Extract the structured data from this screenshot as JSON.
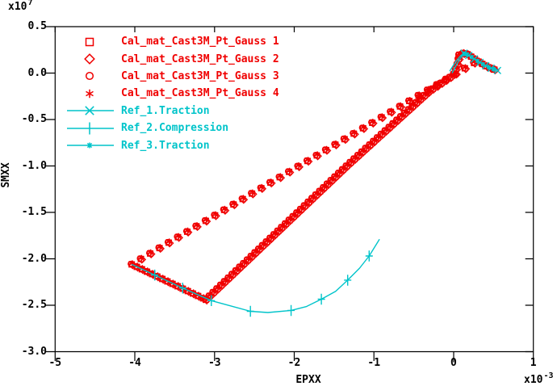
{
  "colors": {
    "red": "#f00000",
    "cyan": "#00c4ca",
    "axis": "#000000",
    "background": "#ffffff"
  },
  "axes": {
    "xlabel": "EPXX",
    "ylabel": "SMXX",
    "y_power_base": "x10",
    "y_power_exp": "7",
    "x_power_base": "x10",
    "x_power_exp": "-3",
    "x_tick_labels": [
      "-5",
      "-4",
      "-3",
      "-2",
      "-1",
      "0",
      "1"
    ],
    "y_tick_labels": [
      "0.5",
      "0.0",
      "-0.5",
      "-1.0",
      "-1.5",
      "-2.0",
      "-2.5",
      "-3.0"
    ]
  },
  "legend": [
    {
      "label": "Cal_mat_Cast3M_Pt_Gauss 1",
      "color": "red",
      "marker": "square",
      "line": false
    },
    {
      "label": "Cal_mat_Cast3M_Pt_Gauss 2",
      "color": "red",
      "marker": "diamond",
      "line": false
    },
    {
      "label": "Cal_mat_Cast3M_Pt_Gauss 3",
      "color": "red",
      "marker": "circle",
      "line": false
    },
    {
      "label": "Cal_mat_Cast3M_Pt_Gauss 4",
      "color": "red",
      "marker": "asterisk",
      "line": false
    },
    {
      "label": "Ref_1.Traction",
      "color": "cyan",
      "marker": "x",
      "line": true
    },
    {
      "label": "Ref_2.Compression",
      "color": "cyan",
      "marker": "plus",
      "line": true
    },
    {
      "label": "Ref_3.Traction",
      "color": "cyan",
      "marker": "star",
      "line": true
    }
  ],
  "chart_data": {
    "type": "line",
    "title": "",
    "xlabel": "EPXX",
    "ylabel": "SMXX",
    "x_unit_scale": "1e-3",
    "y_unit_scale": "1e7",
    "xlim": [
      -5,
      1
    ],
    "ylim": [
      -3.0,
      0.5
    ],
    "x_ticks": [
      -5,
      -4,
      -3,
      -2,
      -1,
      0,
      1
    ],
    "y_ticks": [
      0.5,
      0.0,
      -0.5,
      -1.0,
      -1.5,
      -2.0,
      -2.5,
      -3.0
    ],
    "grid": false,
    "legend_position": "upper-left-inside",
    "cal_path_segments": [
      {
        "name": "compression_descending",
        "points": [
          [
            -4.04,
            -2.06
          ],
          [
            -3.11,
            -2.44
          ]
        ],
        "marker_step_px": 7
      },
      {
        "name": "reload_ascending_dense",
        "points": [
          [
            -3.11,
            -2.44
          ],
          [
            -1.33,
            -0.99
          ],
          [
            -0.3,
            -0.19
          ],
          [
            0.0,
            -0.02
          ],
          [
            0.05,
            0.1
          ],
          [
            0.07,
            0.195
          ]
        ],
        "marker_step_px": 6.5
      },
      {
        "name": "peak_and_softening_tail",
        "points": [
          [
            0.07,
            0.195
          ],
          [
            0.11,
            0.213
          ],
          [
            0.15,
            0.214
          ],
          [
            0.19,
            0.193
          ],
          [
            0.25,
            0.158
          ],
          [
            0.31,
            0.124
          ],
          [
            0.37,
            0.092
          ],
          [
            0.43,
            0.065
          ],
          [
            0.5,
            0.04
          ],
          [
            0.55,
            0.028
          ]
        ],
        "marker_step_px": 5.5
      },
      {
        "name": "unload_ascending_sparse",
        "points": [
          [
            -4.04,
            -2.06
          ],
          [
            0.3,
            0.132
          ]
        ],
        "marker_step_px": 13.3
      }
    ],
    "series": [
      {
        "name": "Cal_mat_Cast3M_Pt_Gauss 1",
        "role": "cal",
        "marker": "square",
        "color": "red"
      },
      {
        "name": "Cal_mat_Cast3M_Pt_Gauss 2",
        "role": "cal",
        "marker": "diamond",
        "color": "red"
      },
      {
        "name": "Cal_mat_Cast3M_Pt_Gauss 3",
        "role": "cal",
        "marker": "circle",
        "color": "red"
      },
      {
        "name": "Cal_mat_Cast3M_Pt_Gauss 4",
        "role": "cal",
        "marker": "asterisk",
        "color": "red"
      },
      {
        "name": "Ref_1.Traction",
        "role": "ref",
        "marker": "x",
        "color": "cyan",
        "points": [
          [
            -0.05,
            0.02
          ],
          [
            0.0,
            0.09
          ],
          [
            0.05,
            0.15
          ],
          [
            0.09,
            0.19
          ],
          [
            0.13,
            0.215
          ],
          [
            0.19,
            0.19
          ],
          [
            0.26,
            0.152
          ],
          [
            0.33,
            0.115
          ],
          [
            0.4,
            0.08
          ],
          [
            0.47,
            0.052
          ],
          [
            0.55,
            0.028
          ]
        ],
        "marker_idx": [
          4,
          5,
          6,
          7,
          8,
          9,
          10
        ]
      },
      {
        "name": "Ref_2.Compression",
        "role": "ref",
        "marker": "plus",
        "color": "cyan",
        "points": [
          [
            -4.04,
            -2.06
          ],
          [
            -3.75,
            -2.175
          ],
          [
            -3.4,
            -2.315
          ],
          [
            -3.04,
            -2.45
          ],
          [
            -2.55,
            -2.565
          ],
          [
            -2.33,
            -2.578
          ],
          [
            -2.04,
            -2.556
          ],
          [
            -1.85,
            -2.515
          ],
          [
            -1.66,
            -2.435
          ],
          [
            -1.48,
            -2.35
          ],
          [
            -1.33,
            -2.23
          ],
          [
            -1.18,
            -2.1
          ],
          [
            -1.06,
            -1.97
          ],
          [
            -0.93,
            -1.79
          ]
        ],
        "marker_idx": [
          1,
          2,
          3,
          4,
          6,
          8,
          10,
          12
        ]
      },
      {
        "name": "Ref_3.Traction",
        "role": "ref",
        "marker": "star",
        "color": "cyan",
        "points": [
          [
            -0.02,
            0.0
          ],
          [
            0.03,
            0.08
          ],
          [
            0.08,
            0.155
          ],
          [
            0.13,
            0.205
          ],
          [
            0.17,
            0.2
          ],
          [
            0.23,
            0.172
          ],
          [
            0.3,
            0.13
          ],
          [
            0.37,
            0.094
          ],
          [
            0.44,
            0.062
          ],
          [
            0.5,
            0.042
          ],
          [
            0.53,
            0.03
          ]
        ],
        "marker_idx": [
          3,
          4,
          5,
          6,
          7,
          8,
          9
        ]
      }
    ]
  }
}
